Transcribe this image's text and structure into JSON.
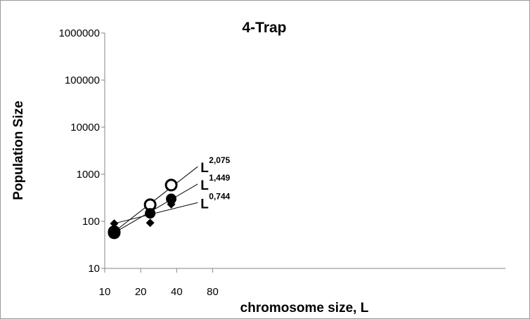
{
  "chart_data": {
    "type": "scatter",
    "title": "4-Trap",
    "xlabel": "chromosome size, L",
    "ylabel": "Population Size",
    "x_scale": "log",
    "y_scale": "log",
    "xlim": [
      10,
      110
    ],
    "ylim": [
      10,
      1000000
    ],
    "x_ticks": [
      10,
      20,
      40,
      80
    ],
    "x_tick_labels": [
      "10",
      "20",
      "40",
      "80"
    ],
    "y_ticks": [
      10,
      100,
      1000,
      10000,
      100000,
      1000000
    ],
    "y_tick_labels": [
      "10",
      "100",
      "1000",
      "10000",
      "100000",
      "1000000"
    ],
    "grid": false,
    "legend": "none",
    "series": [
      {
        "marker": "open-circle",
        "x": [
          12,
          24,
          36
        ],
        "y": [
          60,
          225,
          590
        ],
        "fit": {
          "exponent_label": "2,075",
          "base_label": "L",
          "x_end": 60,
          "y_end": 1450
        }
      },
      {
        "marker": "filled-circle",
        "x": [
          12,
          24,
          36
        ],
        "y": [
          57,
          148,
          300
        ],
        "fit": {
          "exponent_label": "1,449",
          "base_label": "L",
          "x_end": 60,
          "y_end": 620
        }
      },
      {
        "marker": "filled-diamond",
        "x": [
          12,
          24,
          36
        ],
        "y": [
          90,
          93,
          230
        ],
        "fit": {
          "exponent_label": "0,744",
          "base_label": "L",
          "x_end": 60,
          "y_end": 250
        }
      }
    ],
    "colors": {
      "marks": "#000000",
      "axes": "#868686",
      "frame": "#9a9a9a"
    }
  }
}
